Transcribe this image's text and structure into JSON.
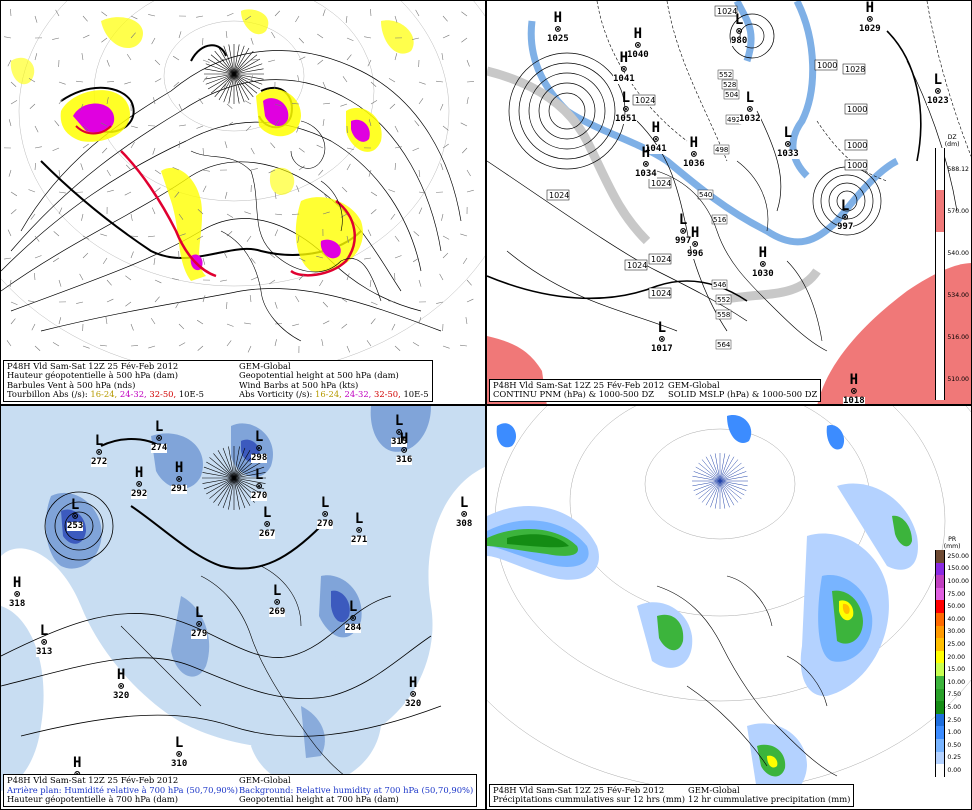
{
  "panels": {
    "tl": {
      "caption": {
        "line1_left": "P48H Vld Sam-Sat 12Z 25 Fév-Feb 2012",
        "line1_right": "GEM-Global",
        "line2_left": "Hauteur géopotentielle à 500 hPa (dam)",
        "line2_right": "Geopotential height at 500 hPa (dam)",
        "line3_left": "Barbules Vent à 500 hPa (nds)",
        "line3_right": "Wind Barbs at 500 hPa (kts)",
        "line4_left_label": "Tourbillon Abs (/s):",
        "line4_right_label": "Abs Vorticity (/s):",
        "range1": "16-24,",
        "range2": "24-32,",
        "range3": "32-50,",
        "unit": "10E-5"
      }
    },
    "tr": {
      "caption": {
        "line1_left": "P48H Vld Sam-Sat 12Z 25 Fév-Feb 2012",
        "line1_right": "GEM-Global",
        "line2_left": "CONTINU PNM (hPa) & 1000-500 DZ",
        "line2_right": "SOLID MSLP (hPa) & 1000-500 DZ"
      },
      "legend": {
        "title_line1": "DZ",
        "title_line2": "(dm)",
        "labels": [
          "588.12",
          "570.00",
          "540.00",
          "534.00",
          "516.00",
          "510.00"
        ],
        "colors": [
          "#ffffff",
          "#f07878",
          "#ffffff",
          "#ffffff",
          "#ffffff",
          "#ffffff"
        ]
      },
      "isobar_labels": [
        "1024",
        "1028",
        "1024",
        "1024",
        "1000",
        "1000",
        "1000",
        "1000",
        "1024",
        "1024",
        "1024",
        "1024"
      ],
      "thickness_labels": [
        "552",
        "528",
        "504",
        "492",
        "516",
        "540",
        "546",
        "552",
        "558",
        "564",
        "498"
      ],
      "centers": [
        {
          "letter": "H",
          "value": "1025"
        },
        {
          "letter": "H",
          "value": "1040"
        },
        {
          "letter": "H",
          "value": "1041"
        },
        {
          "letter": "L",
          "value": "980"
        },
        {
          "letter": "H",
          "value": "1029"
        },
        {
          "letter": "L",
          "value": "1023"
        },
        {
          "letter": "L",
          "value": "1051"
        },
        {
          "letter": "H",
          "value": "1041"
        },
        {
          "letter": "H",
          "value": "1036"
        },
        {
          "letter": "H",
          "value": "1034"
        },
        {
          "letter": "L",
          "value": "1032"
        },
        {
          "letter": "L",
          "value": "1033"
        },
        {
          "letter": "L",
          "value": "997"
        },
        {
          "letter": "L",
          "value": "997"
        },
        {
          "letter": "H",
          "value": "996"
        },
        {
          "letter": "H",
          "value": "1030"
        },
        {
          "letter": "L",
          "value": "1017"
        },
        {
          "letter": "H",
          "value": "1018"
        }
      ]
    },
    "bl": {
      "caption": {
        "line1_left": "P48H Vld Sam-Sat 12Z 25 Fév-Feb 2012",
        "line1_right": "GEM-Global",
        "line2_left": "Arrière plan: Humidité relative à 700 hPa (50,70,90%)",
        "line2_right": "Background: Relative humidity at 700 hPa (50,70,90%)",
        "line3_left": "Hauteur géopotentielle à 700 hPa (dam)",
        "line3_right": "Geopotential height at 700 hPa (dam)"
      },
      "centers": [
        {
          "letter": "L",
          "value": "272"
        },
        {
          "letter": "L",
          "value": "274"
        },
        {
          "letter": "H",
          "value": "292"
        },
        {
          "letter": "H",
          "value": "291"
        },
        {
          "letter": "L",
          "value": "253"
        },
        {
          "letter": "L",
          "value": "298"
        },
        {
          "letter": "L",
          "value": "270"
        },
        {
          "letter": "L",
          "value": "315"
        },
        {
          "letter": "H",
          "value": "316"
        },
        {
          "letter": "L",
          "value": "267"
        },
        {
          "letter": "L",
          "value": "270"
        },
        {
          "letter": "L",
          "value": "271"
        },
        {
          "letter": "L",
          "value": "308"
        },
        {
          "letter": "H",
          "value": "318"
        },
        {
          "letter": "L",
          "value": "313"
        },
        {
          "letter": "L",
          "value": "269"
        },
        {
          "letter": "L",
          "value": "279"
        },
        {
          "letter": "L",
          "value": "284"
        },
        {
          "letter": "H",
          "value": "320"
        },
        {
          "letter": "H",
          "value": "320"
        },
        {
          "letter": "L",
          "value": "310"
        },
        {
          "letter": "H",
          "value": ""
        }
      ]
    },
    "br": {
      "caption": {
        "line1_left": "P48H Vld Sam-Sat 12Z 25 Fév-Feb 2012",
        "line1_right": "GEM-Global",
        "line2_left": "Précipitations cummulatives sur 12 hrs (mm)",
        "line2_right": "12 hr cummulative precipitation    (mm)"
      },
      "legend": {
        "title_line1": "PR",
        "title_line2": "(mm)",
        "labels": [
          "250.00",
          "150.00",
          "100.00",
          "75.00",
          "50.00",
          "40.00",
          "30.00",
          "25.00",
          "20.00",
          "15.00",
          "10.00",
          "7.50",
          "5.00",
          "2.50",
          "1.00",
          "0.50",
          "0.25",
          "0.00"
        ],
        "colors": [
          "#6e4a32",
          "#8a2be2",
          "#c040c0",
          "#e060e0",
          "#ff0000",
          "#ff6a00",
          "#ff9a00",
          "#ffc000",
          "#ffff00",
          "#c8ff50",
          "#3cb43c",
          "#28a028",
          "#148c14",
          "#1e6ede",
          "#3c8cff",
          "#78b4ff",
          "#b4d2ff",
          "#ffffff"
        ]
      }
    }
  },
  "colors": {
    "vort_yellow": "#ffff00",
    "vort_magenta": "#e000e0",
    "vort_red": "#e00030",
    "rh_light": "#c8ddf2",
    "rh_mid": "#6e96d2",
    "rh_dark": "#3c5abe",
    "thick_red": "#f07878",
    "precip_blue": "#3c8cff",
    "precip_green": "#148c14"
  }
}
